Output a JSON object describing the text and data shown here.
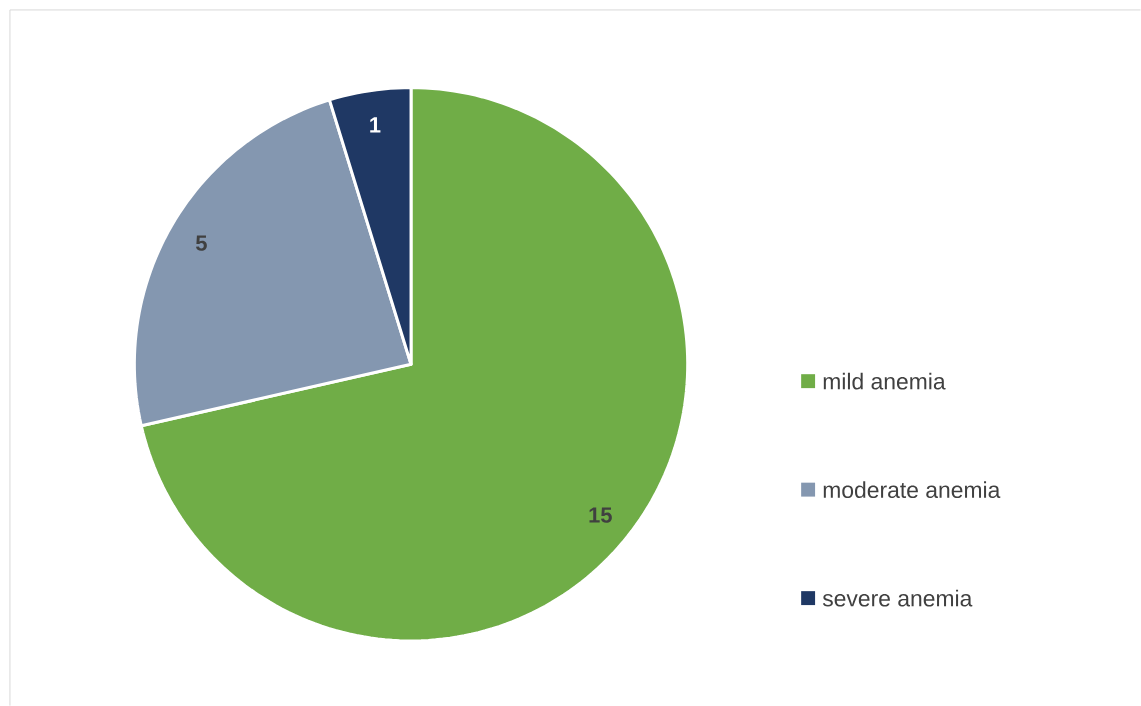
{
  "chart_data": {
    "type": "pie",
    "categories": [
      "mild anemia",
      "moderate anemia",
      "severe anemia"
    ],
    "values": [
      15,
      5,
      1
    ],
    "colors": [
      "#70ad47",
      "#8497b0",
      "#1f3864"
    ],
    "data_labels": true,
    "legend": "right"
  }
}
